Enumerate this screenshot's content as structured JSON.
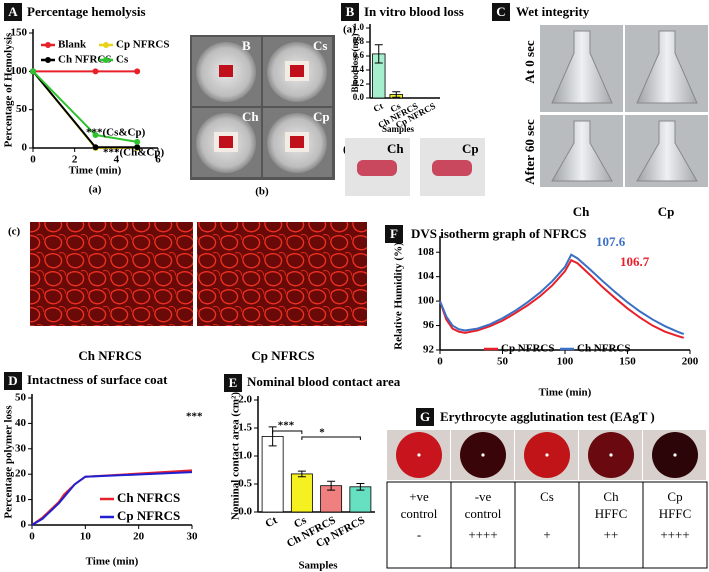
{
  "chart_data": [
    {
      "type": "line",
      "panel": "A",
      "title": "Percentage hemolysis",
      "sublabel": "(a)",
      "x_label": "Time (min)",
      "y_label": "Percentage of Hemolysis",
      "x": [
        0,
        3,
        5
      ],
      "series": [
        {
          "name": "Blank",
          "color": "#e8202a",
          "values": [
            100,
            100,
            100
          ]
        },
        {
          "name": "Cp NFRCS",
          "color": "#e8d21a",
          "values": [
            100,
            0,
            0
          ]
        },
        {
          "name": "Ch NFRCS",
          "color": "#000000",
          "values": [
            100,
            1,
            1
          ]
        },
        {
          "name": "Cs",
          "color": "#2ec22e",
          "values": [
            100,
            17,
            8
          ]
        }
      ],
      "xlim": [
        0,
        6
      ],
      "xticks": [
        0,
        2,
        4,
        6
      ],
      "ylim": [
        0,
        150
      ],
      "yticks": [
        0,
        50,
        100,
        150
      ],
      "markers": true,
      "legend": "upper",
      "annotations": [
        "***(Cs&Cp)",
        "***(Ch&Cp)"
      ]
    },
    {
      "type": "bar",
      "panel": "B",
      "title": "In vitro blood loss",
      "sublabel": "(a)",
      "x_label": "Samples",
      "y_label": "Blood loss (mg)",
      "categories": [
        "Ct",
        "Cs",
        "Ch NFRCS",
        "Cp NFRCS"
      ],
      "values": [
        0.63,
        0.05,
        0,
        0
      ],
      "errors": [
        0.13,
        0.04,
        0,
        0
      ],
      "colors": [
        "#a6efce",
        "#f2ee2a",
        "#f08080",
        "#66e0c0"
      ],
      "ylim": [
        0,
        1
      ],
      "yticks": [
        {
          "value": 0,
          "label": "0.0"
        },
        {
          "value": 0.2,
          "label": "0.2"
        },
        {
          "value": 0.4,
          "label": "0.4"
        },
        {
          "value": 0.6,
          "label": "0.6"
        },
        {
          "value": 0.8,
          "label": "0.8"
        },
        {
          "value": 1,
          "label": "1.0"
        }
      ]
    },
    {
      "type": "line",
      "panel": "D",
      "title": "Intactness of surface coat",
      "x_label": "Time (min)",
      "y_label": "Percentage polymer loss",
      "x": [
        0,
        2,
        3,
        4,
        5,
        6,
        7,
        8,
        10,
        30
      ],
      "series": [
        {
          "name": "Ch NFRCS",
          "color": "#e8202a",
          "values": [
            0,
            3,
            5,
            7,
            9,
            12,
            14,
            16,
            19,
            21.5
          ]
        },
        {
          "name": "Cp NFRCS",
          "color": "#2020d0",
          "values": [
            0,
            2.5,
            4.5,
            6.5,
            8.5,
            11,
            13.5,
            16,
            19,
            20.8
          ]
        }
      ],
      "xlim": [
        0,
        30
      ],
      "xticks": [
        0,
        10,
        20,
        30
      ],
      "ylim": [
        0,
        50
      ],
      "yticks": [
        0,
        10,
        20,
        30,
        40,
        50
      ],
      "markers": false,
      "legend": "lower right",
      "annotations": [
        "***"
      ]
    },
    {
      "type": "bar",
      "panel": "E",
      "title": "Nominal blood contact area",
      "x_label": "Samples",
      "y_label": "Nominal contact area (cm²)",
      "categories": [
        "Ct",
        "Cs",
        "Ch NFRCS",
        "Cp NFRCS"
      ],
      "values": [
        1.35,
        0.68,
        0.47,
        0.45
      ],
      "errors": [
        0.17,
        0.05,
        0.08,
        0.06
      ],
      "colors": [
        "#ffffff",
        "#f5f020",
        "#f08080",
        "#66e0c0"
      ],
      "ylim": [
        0,
        2
      ],
      "yticks": [
        {
          "value": 0,
          "label": "0.0"
        },
        {
          "value": 0.5,
          "label": "0.5"
        },
        {
          "value": 1,
          "label": "1.0"
        },
        {
          "value": 1.5,
          "label": "1.5"
        },
        {
          "value": 2,
          "label": "2.0"
        }
      ],
      "annotations": [
        "***",
        "*"
      ]
    },
    {
      "type": "line",
      "panel": "F",
      "title": "DVS isotherm graph of NFRCS",
      "x_label": "Time (min)",
      "y_label": "Relative Humidity (%)",
      "x": [
        0,
        5,
        10,
        15,
        20,
        30,
        40,
        50,
        60,
        70,
        80,
        90,
        100,
        105,
        110,
        120,
        130,
        140,
        150,
        160,
        170,
        180,
        190,
        195
      ],
      "series": [
        {
          "name": "Cp NFRCS",
          "color": "#e8202a",
          "values": [
            100,
            97,
            95.5,
            95,
            94.8,
            95.2,
            95.9,
            96.8,
            98,
            99.3,
            100.8,
            102.6,
            104.9,
            106.7,
            106.2,
            104.3,
            102.3,
            100.5,
            98.8,
            97.3,
            96,
            95,
            94.3,
            94
          ]
        },
        {
          "name": "Ch NFRCS",
          "color": "#3a6fc4",
          "values": [
            100,
            97.5,
            96,
            95.4,
            95.2,
            95.5,
            96.2,
            97.2,
            98.4,
            99.8,
            101.4,
            103.3,
            105.6,
            107.6,
            107,
            105.2,
            103.3,
            101.5,
            99.8,
            98.3,
            97,
            95.9,
            95,
            94.6
          ]
        }
      ],
      "xlim": [
        0,
        200
      ],
      "xticks": [
        0,
        50,
        100,
        150,
        200
      ],
      "ylim": [
        92,
        110
      ],
      "yticks": [
        92,
        96,
        100,
        104,
        108
      ],
      "markers": false,
      "legend": "lower center",
      "annotations": [
        "107.6",
        "106.7"
      ],
      "annotation_colors": [
        "#3a6fc4",
        "#e8202a"
      ]
    }
  ],
  "panels": {
    "hemolysis_photos": {
      "label": "(b)",
      "dishes": [
        "B",
        "Cs",
        "Ch",
        "Cp"
      ]
    },
    "blood_loss_photos": {
      "label": "(b)",
      "tubes": [
        "Ch",
        "Cp"
      ]
    },
    "wet_integrity": {
      "panel": "C",
      "title": "Wet integrity",
      "rows": [
        "At 0 sec",
        "After 60 sec"
      ],
      "columns": [
        "Ch",
        "Cp"
      ]
    },
    "micrographs": {
      "label": "(c)",
      "captions": [
        "Ch NFRCS",
        "Cp NFRCS"
      ]
    },
    "agglutination": {
      "panel": "G",
      "title": "Erythrocyte agglutination test (EAgT )",
      "cells": [
        {
          "lines": [
            "+ve",
            "control"
          ],
          "result": "-"
        },
        {
          "lines": [
            "-ve",
            "control"
          ],
          "result": "++++"
        },
        {
          "lines": [
            "Cs"
          ],
          "result": "+"
        },
        {
          "lines": [
            "Ch",
            "HFFC"
          ],
          "result": "++"
        },
        {
          "lines": [
            "Cp",
            "HFFC"
          ],
          "result": "++++"
        }
      ]
    }
  }
}
